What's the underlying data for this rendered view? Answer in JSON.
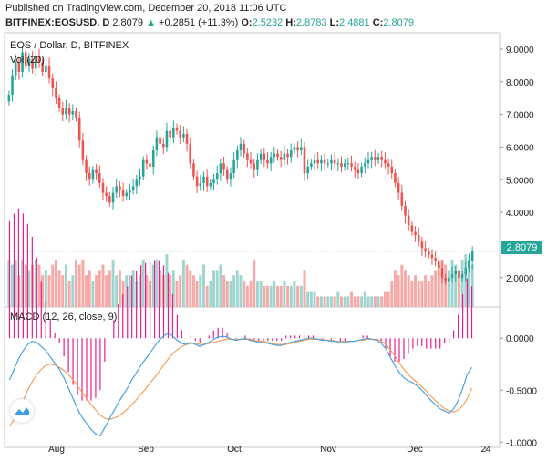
{
  "header": {
    "published": "Published on TradingView.com, December 20, 2018 11:06 UTC",
    "symbol": "BITFINEX:EOSUSD, D",
    "last": "2.8079",
    "change_arrow": "▲",
    "change": "+0.2851 (+11.3%)",
    "o_label": "O:",
    "o": "2.5232",
    "h_label": "H:",
    "h": "2.8783",
    "l_label": "L:",
    "l": "2.4881",
    "c_label": "C:",
    "c": "2.8079"
  },
  "main_legend": {
    "title": "EOS / Dollar, D, BITFINEX",
    "vol": "Vol (20)"
  },
  "macd_legend": {
    "title": "MACD (12, 26, close, 9)"
  },
  "price_tag": "2.8079",
  "colors": {
    "up": "#26a69a",
    "down": "#ef5350",
    "vol_up": "#9fd5cf",
    "vol_down": "#f7a9a7",
    "macd": "#4aa3df",
    "signal": "#f5a05a",
    "hist": "#e91e8c",
    "price_line": "#26a69a"
  },
  "chart_data": [
    {
      "type": "candlestick",
      "title": "EOS / Dollar, D, BITFINEX",
      "ylim": [
        1.1,
        9.5
      ],
      "y_ticks": [
        "9.0000",
        "8.0000",
        "7.0000",
        "6.0000",
        "5.0000",
        "4.0000",
        "2.0000"
      ],
      "x_ticks": [
        "Aug",
        "Sep",
        "Oct",
        "Nov",
        "Dec",
        "24"
      ],
      "last_price": 2.8079,
      "ohlc_close": [
        7.6,
        8.2,
        8.6,
        8.3,
        8.9,
        8.5,
        8.7,
        8.4,
        8.8,
        8.6,
        8.3,
        8.5,
        8.1,
        7.8,
        7.5,
        7.2,
        7.0,
        7.2,
        7.0,
        7.1,
        6.9,
        6.2,
        5.6,
        5.2,
        5.0,
        5.3,
        5.2,
        4.9,
        4.6,
        4.5,
        4.3,
        4.6,
        4.8,
        4.7,
        4.5,
        4.6,
        4.7,
        4.8,
        5.0,
        5.1,
        5.6,
        5.5,
        5.4,
        5.9,
        6.3,
        6.1,
        6.0,
        6.5,
        6.3,
        6.6,
        6.5,
        6.3,
        6.4,
        6.1,
        5.5,
        5.1,
        4.8,
        4.9,
        5.1,
        4.8,
        4.9,
        5.0,
        5.2,
        5.5,
        5.3,
        5.0,
        5.2,
        5.6,
        5.9,
        6.1,
        5.8,
        5.6,
        5.5,
        5.3,
        5.6,
        5.8,
        5.6,
        5.5,
        5.7,
        5.8,
        5.7,
        5.6,
        5.8,
        5.7,
        5.9,
        6.0,
        5.9,
        6.0,
        5.2,
        5.4,
        5.5,
        5.6,
        5.5,
        5.6,
        5.5,
        5.5,
        5.6,
        5.5,
        5.5,
        5.4,
        5.5,
        5.5,
        5.4,
        5.3,
        5.2,
        5.4,
        5.5,
        5.6,
        5.7,
        5.6,
        5.7,
        5.6,
        5.5,
        5.4,
        5.2,
        4.9,
        4.6,
        4.2,
        3.9,
        3.6,
        3.4,
        3.3,
        3.1,
        2.9,
        2.8,
        2.7,
        2.6,
        2.5,
        2.3,
        2.0,
        1.9,
        2.0,
        2.1,
        2.2,
        2.0,
        2.1,
        2.3,
        2.5,
        2.8079
      ],
      "volume": [
        0.9,
        0.8,
        0.9,
        0.6,
        0.9,
        0.8,
        0.7,
        0.8,
        0.9,
        0.8,
        0.6,
        0.7,
        0.6,
        0.8,
        0.9,
        0.7,
        0.6,
        0.8,
        0.5,
        0.6,
        0.9,
        0.8,
        0.9,
        0.6,
        0.7,
        0.5,
        0.6,
        0.7,
        0.8,
        0.6,
        0.7,
        0.9,
        0.6,
        0.7,
        0.5,
        0.6,
        0.6,
        0.7,
        0.5,
        0.6,
        0.9,
        0.6,
        0.5,
        0.8,
        0.9,
        0.7,
        0.6,
        1.0,
        0.6,
        0.7,
        0.5,
        0.6,
        0.9,
        0.8,
        0.7,
        0.6,
        0.5,
        0.6,
        0.8,
        0.4,
        0.5,
        0.7,
        0.7,
        0.8,
        0.6,
        0.5,
        0.5,
        0.6,
        0.7,
        0.6,
        0.5,
        0.4,
        0.5,
        0.9,
        0.5,
        0.5,
        0.4,
        0.4,
        0.4,
        0.5,
        0.4,
        0.4,
        0.5,
        0.4,
        0.4,
        0.5,
        0.4,
        0.4,
        0.7,
        0.3,
        0.3,
        0.3,
        0.2,
        0.2,
        0.2,
        0.2,
        0.2,
        0.2,
        0.3,
        0.2,
        0.2,
        0.2,
        0.3,
        0.2,
        0.2,
        0.2,
        0.3,
        0.2,
        0.2,
        0.2,
        0.2,
        0.2,
        0.3,
        0.3,
        0.5,
        0.7,
        0.6,
        0.8,
        0.7,
        0.6,
        0.5,
        0.6,
        0.5,
        0.5,
        0.6,
        0.5,
        0.6,
        0.7,
        0.8,
        0.9,
        0.8,
        0.7,
        0.9,
        0.8,
        0.7,
        0.9,
        1.0,
        0.9,
        0.8
      ]
    },
    {
      "type": "macd",
      "title": "MACD (12, 26, close, 9)",
      "ylim": [
        -1.05,
        0.3
      ],
      "y_ticks": [
        "0.0000",
        "-0.5000",
        "-1.0000"
      ],
      "macd": [
        -0.4,
        -0.3,
        -0.2,
        -0.12,
        -0.06,
        -0.03,
        -0.04,
        -0.08,
        -0.12,
        -0.18,
        -0.24,
        -0.3,
        -0.38,
        -0.48,
        -0.58,
        -0.68,
        -0.76,
        -0.82,
        -0.88,
        -0.92,
        -0.94,
        -0.86,
        -0.78,
        -0.7,
        -0.62,
        -0.55,
        -0.48,
        -0.4,
        -0.33,
        -0.26,
        -0.2,
        -0.14,
        -0.08,
        -0.02,
        0.02,
        0.05,
        0.02,
        -0.02,
        -0.05,
        -0.06,
        -0.04,
        -0.06,
        -0.08,
        -0.06,
        -0.04,
        -0.01,
        0.01,
        0.02,
        0.01,
        -0.01,
        -0.02,
        -0.01,
        0.0,
        -0.02,
        -0.03,
        -0.04,
        -0.04,
        -0.05,
        -0.06,
        -0.07,
        -0.07,
        -0.05,
        -0.04,
        -0.03,
        -0.02,
        -0.01,
        0.0,
        0.0,
        -0.01,
        -0.02,
        -0.02,
        -0.03,
        -0.03,
        -0.04,
        -0.04,
        -0.03,
        -0.03,
        -0.02,
        -0.01,
        0.0,
        -0.01,
        -0.02,
        -0.05,
        -0.1,
        -0.18,
        -0.26,
        -0.33,
        -0.38,
        -0.41,
        -0.43,
        -0.46,
        -0.5,
        -0.55,
        -0.6,
        -0.64,
        -0.68,
        -0.7,
        -0.72,
        -0.68,
        -0.6,
        -0.48,
        -0.35,
        -0.28
      ],
      "signal": [
        -0.85,
        -0.78,
        -0.7,
        -0.6,
        -0.5,
        -0.42,
        -0.35,
        -0.3,
        -0.26,
        -0.25,
        -0.26,
        -0.28,
        -0.31,
        -0.35,
        -0.4,
        -0.46,
        -0.52,
        -0.58,
        -0.64,
        -0.69,
        -0.74,
        -0.77,
        -0.78,
        -0.77,
        -0.75,
        -0.72,
        -0.68,
        -0.64,
        -0.59,
        -0.54,
        -0.49,
        -0.43,
        -0.38,
        -0.32,
        -0.26,
        -0.2,
        -0.15,
        -0.11,
        -0.08,
        -0.06,
        -0.05,
        -0.05,
        -0.06,
        -0.06,
        -0.05,
        -0.04,
        -0.03,
        -0.02,
        -0.01,
        -0.01,
        -0.01,
        -0.01,
        -0.01,
        -0.01,
        -0.02,
        -0.03,
        -0.03,
        -0.04,
        -0.05,
        -0.06,
        -0.06,
        -0.06,
        -0.05,
        -0.04,
        -0.03,
        -0.02,
        -0.01,
        -0.01,
        -0.01,
        -0.01,
        -0.02,
        -0.02,
        -0.03,
        -0.03,
        -0.03,
        -0.03,
        -0.03,
        -0.02,
        -0.02,
        -0.01,
        -0.01,
        -0.01,
        -0.03,
        -0.06,
        -0.11,
        -0.17,
        -0.24,
        -0.3,
        -0.35,
        -0.39,
        -0.43,
        -0.47,
        -0.51,
        -0.56,
        -0.6,
        -0.64,
        -0.68,
        -0.7,
        -0.71,
        -0.69,
        -0.65,
        -0.58,
        -0.48
      ]
    }
  ]
}
